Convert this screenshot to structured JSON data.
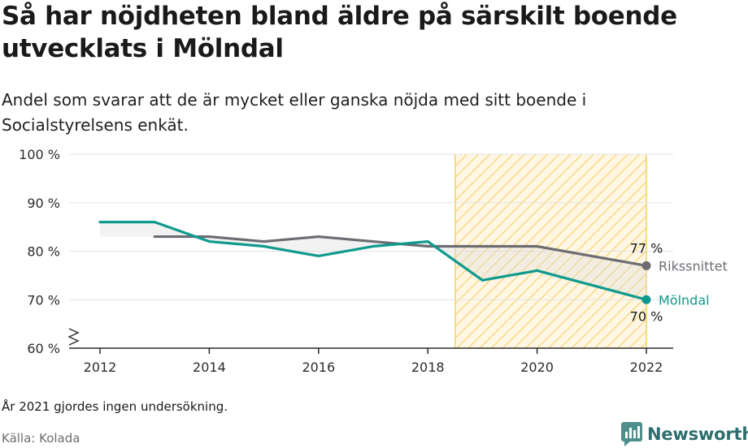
{
  "header": {
    "title": "Så har nöjdheten bland äldre på särskilt boende utvecklats i Mölndal",
    "subtitle": "Andel som svarar att de är mycket eller ganska nöjda med sitt boende i Socialstyrelsens enkät."
  },
  "footer": {
    "note": "År 2021 gjordes ingen undersökning.",
    "source": "Källa: Kolada",
    "brand": "Newsworthy"
  },
  "chart_data": {
    "type": "line",
    "title": "Så har nöjdheten bland äldre på särskilt boende utvecklats i Mölndal",
    "subtitle": "Andel som svarar att de är mycket eller ganska nöjda med sitt boende i Socialstyrelsens enkät.",
    "xlim": [
      2012,
      2022
    ],
    "ylim": [
      60,
      100
    ],
    "x_ticks": [
      "2012",
      "2014",
      "2016",
      "2018",
      "2020",
      "2022"
    ],
    "y_ticks": [
      "60 %",
      "70 %",
      "80 %",
      "90 %",
      "100 %"
    ],
    "grid": true,
    "highlight_range": [
      2018.5,
      2022
    ],
    "series": [
      {
        "name": "Rikssnittet",
        "color": "#6d6c73",
        "end_value_label": "77 %",
        "points": [
          {
            "x": 2013,
            "y": 83
          },
          {
            "x": 2014,
            "y": 83
          },
          {
            "x": 2015,
            "y": 82
          },
          {
            "x": 2016,
            "y": 83
          },
          {
            "x": 2017,
            "y": 82
          },
          {
            "x": 2018,
            "y": 81
          },
          {
            "x": 2019,
            "y": 81
          },
          {
            "x": 2020,
            "y": 81
          },
          {
            "x": 2022,
            "y": 77
          }
        ]
      },
      {
        "name": "Mölndal",
        "color": "#0f9a8e",
        "end_value_label": "70 %",
        "points": [
          {
            "x": 2012,
            "y": 86
          },
          {
            "x": 2013,
            "y": 86
          },
          {
            "x": 2014,
            "y": 82
          },
          {
            "x": 2015,
            "y": 81
          },
          {
            "x": 2016,
            "y": 79
          },
          {
            "x": 2017,
            "y": 81
          },
          {
            "x": 2018,
            "y": 82
          },
          {
            "x": 2019,
            "y": 74
          },
          {
            "x": 2020,
            "y": 76
          },
          {
            "x": 2022,
            "y": 70
          }
        ]
      }
    ]
  }
}
